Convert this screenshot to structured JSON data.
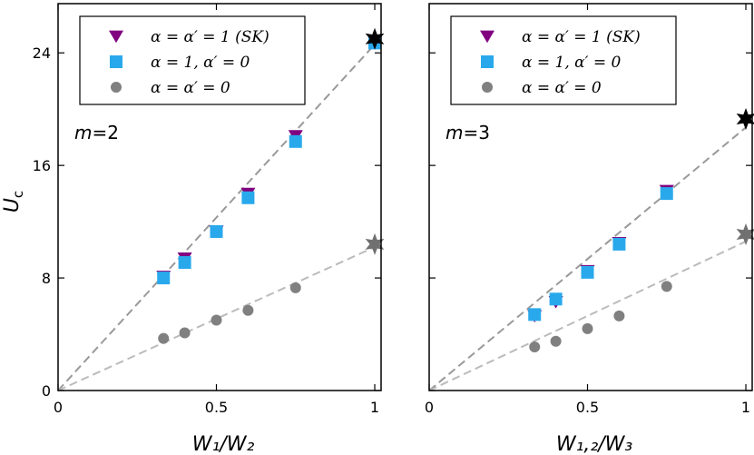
{
  "chart_data": [
    {
      "type": "scatter",
      "panel": "left",
      "xlabel": "W₁/W₂",
      "ylabel": "U_c",
      "xlim": [
        0,
        1.02
      ],
      "ylim": [
        0,
        27.5
      ],
      "xticks": [
        0,
        0.5,
        1
      ],
      "xtick_labels": [
        "0",
        "0.5",
        "1"
      ],
      "yticks": [
        0,
        8,
        16,
        24
      ],
      "ytick_labels": [
        "0",
        "8",
        "16",
        "24"
      ],
      "annotation": "m=2",
      "grid": false,
      "legend_placement": "top-left",
      "series": [
        {
          "name": "α = α′ = 1 (SK)",
          "marker": "triangle-down",
          "color": "#800080",
          "x": [
            0.333,
            0.4,
            0.5,
            0.6,
            0.75
          ],
          "y": [
            8.1,
            9.4,
            11.3,
            14.0,
            18.1
          ]
        },
        {
          "name": "α = 1,  α′ = 0",
          "marker": "square",
          "color": "#29a9ec",
          "x": [
            0.333,
            0.4,
            0.5,
            0.6,
            0.75,
            1.0
          ],
          "y": [
            8.0,
            9.1,
            11.3,
            13.7,
            17.7,
            24.7
          ]
        },
        {
          "name": "α = α′ = 0",
          "marker": "circle",
          "color": "#808080",
          "x": [
            0.333,
            0.4,
            0.5,
            0.6,
            0.75
          ],
          "y": [
            3.7,
            4.1,
            5.0,
            5.7,
            7.3
          ]
        }
      ],
      "stars": [
        {
          "x": 1.0,
          "y": 25.0,
          "color": "#000000"
        },
        {
          "x": 1.0,
          "y": 10.4,
          "color": "#707070"
        }
      ],
      "fit_lines": [
        {
          "x": [
            0,
            1.0
          ],
          "y": [
            0,
            24.6
          ],
          "color": "#999999"
        },
        {
          "x": [
            0,
            1.0
          ],
          "y": [
            0,
            10.2
          ],
          "color": "#bbbbbb"
        }
      ]
    },
    {
      "type": "scatter",
      "panel": "right",
      "xlabel": "W₁,₂/W₃",
      "ylabel": "",
      "xlim": [
        0,
        1.02
      ],
      "ylim": [
        0,
        27.5
      ],
      "xticks": [
        0,
        0.5,
        1
      ],
      "xtick_labels": [
        "0",
        "0.5",
        "1"
      ],
      "yticks": [
        0,
        8,
        16,
        24
      ],
      "ytick_labels": [],
      "annotation": "m=3",
      "grid": false,
      "legend_placement": "top-left",
      "series": [
        {
          "name": "α = α′ = 1 (SK)",
          "marker": "triangle-down",
          "color": "#800080",
          "x": [
            0.333,
            0.4,
            0.5,
            0.6,
            0.75
          ],
          "y": [
            5.3,
            6.3,
            8.5,
            10.5,
            14.2
          ]
        },
        {
          "name": "α = 1,  α′ = 0",
          "marker": "square",
          "color": "#29a9ec",
          "x": [
            0.333,
            0.4,
            0.5,
            0.6,
            0.75
          ],
          "y": [
            5.4,
            6.5,
            8.4,
            10.4,
            14.0
          ]
        },
        {
          "name": "α = α′ = 0",
          "marker": "circle",
          "color": "#808080",
          "x": [
            0.333,
            0.4,
            0.5,
            0.6,
            0.75
          ],
          "y": [
            3.1,
            3.5,
            4.4,
            5.3,
            7.4
          ]
        }
      ],
      "stars": [
        {
          "x": 1.0,
          "y": 19.3,
          "color": "#000000"
        },
        {
          "x": 1.0,
          "y": 11.1,
          "color": "#707070"
        }
      ],
      "fit_lines": [
        {
          "x": [
            0,
            1.0
          ],
          "y": [
            0,
            18.7
          ],
          "color": "#999999"
        },
        {
          "x": [
            0,
            1.0
          ],
          "y": [
            0,
            10.6
          ],
          "color": "#bbbbbb"
        }
      ]
    }
  ]
}
